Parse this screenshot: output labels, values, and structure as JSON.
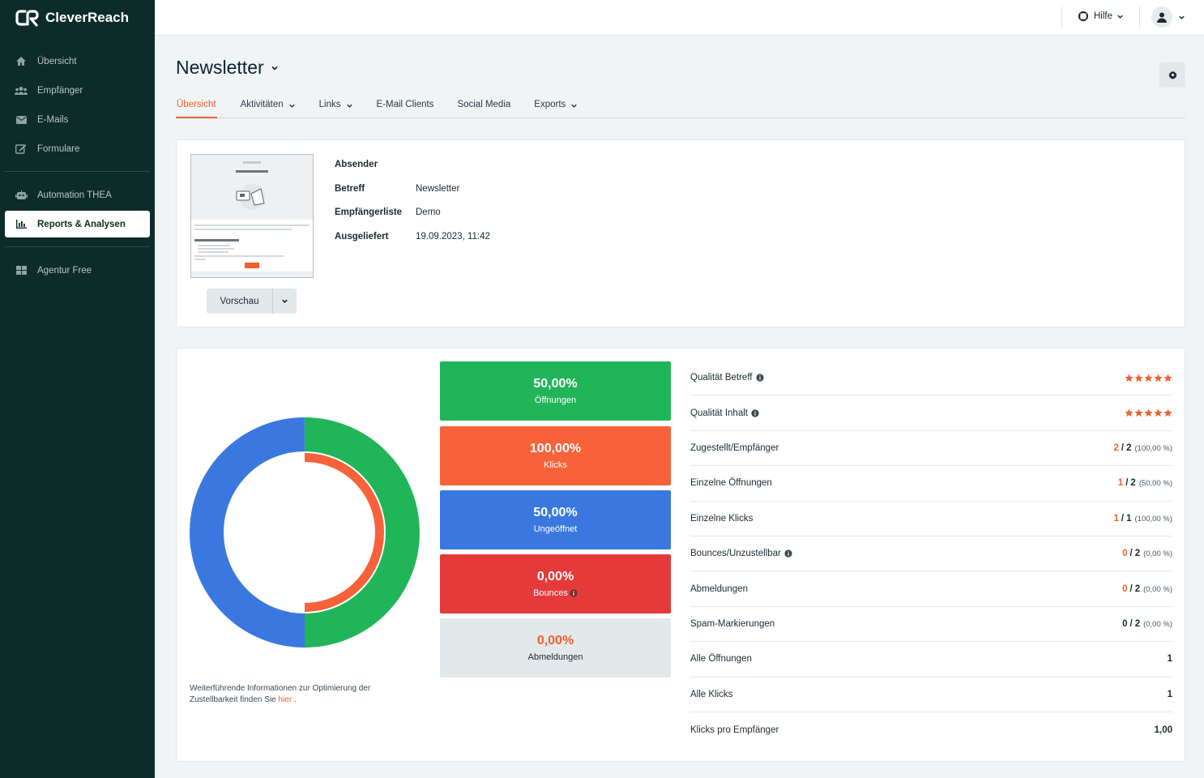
{
  "app": {
    "name": "CleverReach"
  },
  "sidebar": {
    "items": [
      {
        "label": "Übersicht",
        "icon": "home-icon"
      },
      {
        "label": "Empfänger",
        "icon": "users-icon"
      },
      {
        "label": "E-Mails",
        "icon": "envelope-icon"
      },
      {
        "label": "Formulare",
        "icon": "edit-icon"
      },
      {
        "label": "Automation THEA",
        "icon": "robot-icon"
      },
      {
        "label": "Reports & Analysen",
        "icon": "bar-chart-icon",
        "active": true
      },
      {
        "label": "Agentur Free",
        "icon": "grid-icon"
      }
    ]
  },
  "topbar": {
    "help_label": "Hilfe"
  },
  "page": {
    "title": "Newsletter"
  },
  "tabs": [
    {
      "label": "Übersicht",
      "active": true
    },
    {
      "label": "Aktivitäten",
      "dropdown": true
    },
    {
      "label": "Links",
      "dropdown": true
    },
    {
      "label": "E-Mail Clients"
    },
    {
      "label": "Social Media"
    },
    {
      "label": "Exports",
      "dropdown": true
    }
  ],
  "mail": {
    "preview_label": "Vorschau",
    "meta": [
      {
        "key": "Absender",
        "value": ""
      },
      {
        "key": "Betreff",
        "value": "Newsletter"
      },
      {
        "key": "Empfängerliste",
        "value": "Demo"
      },
      {
        "key": "Ausgeliefert",
        "value": "19.09.2023, 11:42"
      }
    ]
  },
  "stats": {
    "opens": {
      "value": "50,00%",
      "label": "Öffnungen",
      "fraction": 0.5,
      "color": "#21b55a"
    },
    "clicks": {
      "value": "100,00%",
      "label": "Klicks",
      "fraction": 1.0,
      "color": "#f8623a"
    },
    "unopened": {
      "value": "50,00%",
      "label": "Ungeöffnet",
      "fraction": 0.5,
      "color": "#3a78e0"
    },
    "bounces": {
      "value": "0,00%",
      "label": "Bounces",
      "fraction": 0.0,
      "color": "#e53a3a"
    },
    "unsubscribes": {
      "value": "0,00%",
      "label": "Abmeldungen",
      "fraction": 0.0,
      "color": "#f2602d"
    }
  },
  "footnote": {
    "text": "Weiterführende Informationen zur Optimierung der Zustellbarkeit finden Sie",
    "link": "hier",
    "end": "."
  },
  "metrics": [
    {
      "label": "Qualität Betreff",
      "info": true,
      "stars": 5
    },
    {
      "label": "Qualität Inhalt",
      "info": true,
      "stars": 5
    },
    {
      "label": "Zugestellt/Empfänger",
      "num": "2",
      "den": "2",
      "pct": "(100,00 %)",
      "orange": true
    },
    {
      "label": "Einzelne Öffnungen",
      "num": "1",
      "den": "2",
      "pct": "(50,00 %)",
      "orange": true
    },
    {
      "label": "Einzelne Klicks",
      "num": "1",
      "den": "1",
      "pct": "(100,00 %)",
      "orange": true
    },
    {
      "label": "Bounces/Unzustellbar",
      "info": true,
      "num": "0",
      "den": "2",
      "pct": "(0,00 %)",
      "orange": true
    },
    {
      "label": "Abmeldungen",
      "num": "0",
      "den": "2",
      "pct": "(0,00 %)",
      "orange": true
    },
    {
      "label": "Spam-Markierungen",
      "num": "0",
      "den": "2",
      "pct": "(0,00 %)",
      "orange": false
    },
    {
      "label": "Alle Öffnungen",
      "value": "1"
    },
    {
      "label": "Alle Klicks",
      "value": "1"
    },
    {
      "label": "Klicks pro Empfänger",
      "value": "1,00"
    }
  ]
}
